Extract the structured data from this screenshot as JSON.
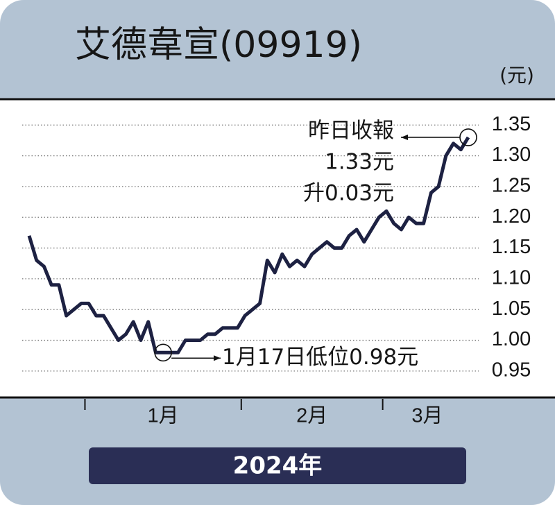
{
  "chart_data": {
    "type": "line",
    "title": "艾德韋宣(09919)",
    "unit_label": "(元)",
    "x_title": "2024年",
    "color": "#1d2142",
    "categories": [
      null,
      null,
      null,
      null,
      null,
      null,
      null,
      null,
      null,
      null,
      null,
      null,
      null,
      null,
      null,
      null,
      null,
      null,
      null,
      null,
      null,
      null,
      null,
      null,
      null,
      null,
      null,
      null,
      null,
      null,
      null,
      null,
      null,
      null,
      null,
      null,
      null,
      null,
      null,
      null,
      null,
      null,
      null,
      null,
      null,
      null,
      null,
      null,
      null,
      null,
      null,
      null,
      null,
      null,
      null,
      null,
      null,
      null,
      null,
      null
    ],
    "values": [
      1.17,
      1.13,
      1.12,
      1.09,
      1.09,
      1.04,
      1.05,
      1.06,
      1.06,
      1.04,
      1.04,
      1.02,
      1.0,
      1.01,
      1.03,
      1.0,
      1.03,
      0.98,
      0.98,
      0.98,
      0.98,
      1.0,
      1.0,
      1.0,
      1.01,
      1.01,
      1.02,
      1.02,
      1.02,
      1.04,
      1.05,
      1.06,
      1.13,
      1.11,
      1.14,
      1.12,
      1.13,
      1.12,
      1.14,
      1.15,
      1.16,
      1.15,
      1.15,
      1.17,
      1.18,
      1.16,
      1.18,
      1.2,
      1.21,
      1.19,
      1.18,
      1.2,
      1.19,
      1.19,
      1.24,
      1.25,
      1.3,
      1.32,
      1.31,
      1.33
    ],
    "xticks": [
      7.5,
      28.5,
      47.5
    ],
    "x_labels": [
      {
        "value": 18,
        "label": "1月"
      },
      {
        "value": 38,
        "label": "2月"
      },
      {
        "value": 53.5,
        "label": "3月"
      }
    ],
    "ylim": [
      0.907,
      1.392
    ],
    "yticks": [
      0.95,
      {
        "value": 1,
        "label": "1.00"
      },
      1.05,
      {
        "value": 1.1,
        "label": "1.10"
      },
      1.15,
      {
        "value": 1.2,
        "label": "1.20"
      },
      1.25,
      {
        "value": 1.3,
        "label": "1.30"
      },
      1.35
    ],
    "grid": true,
    "annotations": [
      {
        "index": 59,
        "lines": [
          "昨日收報",
          "1.33元",
          "升0.03元"
        ]
      },
      {
        "index": 18,
        "lines": [
          "1月17日低位0.98元"
        ]
      }
    ]
  }
}
